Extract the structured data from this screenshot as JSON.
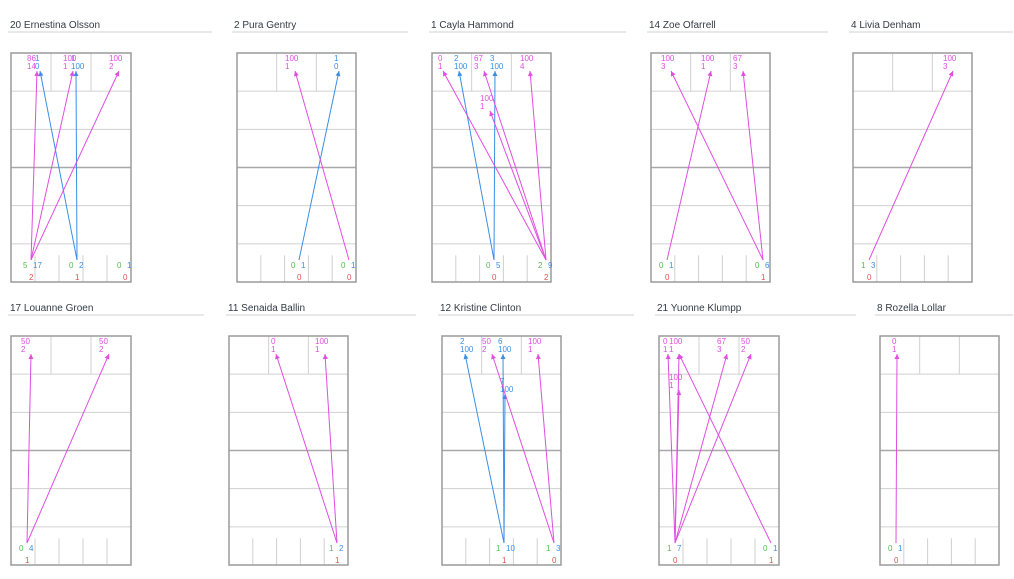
{
  "colors": {
    "blue": "#3a8ee6",
    "magenta": "#e04ee0",
    "green": "#55b855",
    "red": "#e05050",
    "grid": "#d0d0d0",
    "frame": "#9a9a9a",
    "title": "#333a44"
  },
  "chart_data": [
    {
      "type": "scatter",
      "title": "Ernestina Olsson",
      "number": "20",
      "top_labels": [
        {
          "c": "m",
          "a": "86",
          "b": "14"
        },
        {
          "c": "b",
          "a": "1",
          "b": "0"
        },
        {
          "c": "b",
          "a": "1",
          "b": "100"
        },
        {
          "c": "m",
          "a": "100",
          "b": "1"
        },
        {
          "c": "m",
          "a": "100",
          "b": "2"
        }
      ],
      "bottom_labels": [
        {
          "g": "5",
          "v": "17",
          "r": "2"
        },
        {
          "g": "0",
          "v": "2",
          "r": "1"
        },
        {
          "g": "0",
          "v": "1",
          "r": "0"
        }
      ],
      "arrows": [
        {
          "c": "m",
          "from": 0,
          "to": 0
        },
        {
          "c": "b",
          "from": 1,
          "to": 1
        },
        {
          "c": "b",
          "from": 1,
          "to": 2
        },
        {
          "c": "m",
          "from": 0,
          "to": 3
        },
        {
          "c": "m",
          "from": 0,
          "to": 4
        }
      ]
    },
    {
      "type": "scatter",
      "title": "Pura Gentry",
      "number": "2",
      "top_labels": [
        {
          "c": "m",
          "a": "100",
          "b": "1"
        },
        {
          "c": "b",
          "a": "1",
          "b": "0"
        }
      ],
      "bottom_labels": [
        {
          "g": "0",
          "v": "1",
          "r": "0"
        },
        {
          "g": "0",
          "v": "1",
          "r": "0"
        }
      ],
      "arrows": [
        {
          "c": "b",
          "from": 0,
          "to": 1
        },
        {
          "c": "m",
          "from": 1,
          "to": 0
        }
      ]
    },
    {
      "type": "scatter",
      "title": "Cayla Hammond",
      "number": "1",
      "top_labels": [
        {
          "c": "m",
          "a": "0",
          "b": "1"
        },
        {
          "c": "b",
          "a": "2",
          "b": "100"
        },
        {
          "c": "m",
          "a": "67",
          "b": "3"
        },
        {
          "c": "b",
          "a": "3",
          "b": "100"
        },
        {
          "c": "m",
          "a": "100",
          "b": "4"
        },
        {
          "c": "m",
          "a": "100",
          "b": "1"
        }
      ],
      "bottom_labels": [
        {
          "g": "0",
          "v": "5",
          "r": "0"
        },
        {
          "g": "2",
          "v": "9",
          "r": "2"
        }
      ],
      "arrows": [
        {
          "c": "b",
          "from": 0,
          "to": 1
        },
        {
          "c": "b",
          "from": 0,
          "to": 3
        },
        {
          "c": "m",
          "from": 1,
          "to": 0
        },
        {
          "c": "m",
          "from": 1,
          "to": 2
        },
        {
          "c": "m",
          "from": 1,
          "to": 4
        },
        {
          "c": "m",
          "from": 1,
          "to": 5
        }
      ]
    },
    {
      "type": "scatter",
      "title": "Zoe Ofarrell",
      "number": "14",
      "top_labels": [
        {
          "c": "m",
          "a": "100",
          "b": "3"
        },
        {
          "c": "m",
          "a": "100",
          "b": "1"
        },
        {
          "c": "m",
          "a": "67",
          "b": "3"
        }
      ],
      "bottom_labels": [
        {
          "g": "0",
          "v": "1",
          "r": "0"
        },
        {
          "g": "0",
          "v": "6",
          "r": "1"
        }
      ],
      "arrows": [
        {
          "c": "m",
          "from": 0,
          "to": 1
        },
        {
          "c": "m",
          "from": 1,
          "to": 0
        },
        {
          "c": "m",
          "from": 1,
          "to": 2
        }
      ]
    },
    {
      "type": "scatter",
      "title": "Livia Denham",
      "number": "4",
      "top_labels": [
        {
          "c": "m",
          "a": "100",
          "b": "3"
        }
      ],
      "bottom_labels": [
        {
          "g": "1",
          "v": "3",
          "r": "0"
        }
      ],
      "arrows": [
        {
          "c": "m",
          "from": 0,
          "to": 0
        }
      ]
    },
    {
      "type": "scatter",
      "title": "Louanne Groen",
      "number": "17",
      "top_labels": [
        {
          "c": "m",
          "a": "50",
          "b": "2"
        },
        {
          "c": "m",
          "a": "50",
          "b": "2"
        }
      ],
      "bottom_labels": [
        {
          "g": "0",
          "v": "4",
          "r": "1"
        }
      ],
      "arrows": [
        {
          "c": "m",
          "from": 0,
          "to": 0
        },
        {
          "c": "m",
          "from": 0,
          "to": 1
        }
      ]
    },
    {
      "type": "scatter",
      "title": "Senaida Ballin",
      "number": "11",
      "top_labels": [
        {
          "c": "m",
          "a": "0",
          "b": "1"
        },
        {
          "c": "m",
          "a": "100",
          "b": "1"
        }
      ],
      "bottom_labels": [
        {
          "g": "1",
          "v": "2",
          "r": "1"
        }
      ],
      "arrows": [
        {
          "c": "m",
          "from": 0,
          "to": 0
        },
        {
          "c": "m",
          "from": 0,
          "to": 1
        }
      ]
    },
    {
      "type": "scatter",
      "title": "Kristine Clinton",
      "number": "12",
      "top_labels": [
        {
          "c": "b",
          "a": "2",
          "b": "100"
        },
        {
          "c": "m",
          "a": "50",
          "b": "2"
        },
        {
          "c": "b",
          "a": "6",
          "b": "100"
        },
        {
          "c": "m",
          "a": "100",
          "b": "1"
        },
        {
          "c": "b",
          "a": "7",
          "b": "100"
        }
      ],
      "bottom_labels": [
        {
          "g": "1",
          "v": "10",
          "r": "1"
        },
        {
          "g": "1",
          "v": "3",
          "r": "0"
        }
      ],
      "arrows": [
        {
          "c": "b",
          "from": 0,
          "to": 0
        },
        {
          "c": "b",
          "from": 0,
          "to": 2
        },
        {
          "c": "b",
          "from": 0,
          "to": 4
        },
        {
          "c": "m",
          "from": 1,
          "to": 1
        },
        {
          "c": "m",
          "from": 1,
          "to": 3
        }
      ]
    },
    {
      "type": "scatter",
      "title": "Yuonne Klumpp",
      "number": "21",
      "top_labels": [
        {
          "c": "m",
          "a": "0",
          "b": "1"
        },
        {
          "c": "m",
          "a": "100",
          "b": "1"
        },
        {
          "c": "m",
          "a": "67",
          "b": "3"
        },
        {
          "c": "m",
          "a": "50",
          "b": "2"
        },
        {
          "c": "m",
          "a": "100",
          "b": "1"
        }
      ],
      "bottom_labels": [
        {
          "g": "1",
          "v": "7",
          "r": "0"
        },
        {
          "g": "0",
          "v": "1",
          "r": "1"
        }
      ],
      "arrows": [
        {
          "c": "m",
          "from": 0,
          "to": 0
        },
        {
          "c": "m",
          "from": 0,
          "to": 1
        },
        {
          "c": "m",
          "from": 0,
          "to": 2
        },
        {
          "c": "m",
          "from": 0,
          "to": 3
        },
        {
          "c": "m",
          "from": 0,
          "to": 4
        },
        {
          "c": "m",
          "from": 1,
          "to": 1
        }
      ]
    },
    {
      "type": "scatter",
      "title": "Rozella Lollar",
      "number": "8",
      "top_labels": [
        {
          "c": "m",
          "a": "0",
          "b": "1"
        }
      ],
      "bottom_labels": [
        {
          "g": "0",
          "v": "1",
          "r": "0"
        }
      ],
      "arrows": [
        {
          "c": "m",
          "from": 0,
          "to": 0
        }
      ]
    }
  ]
}
